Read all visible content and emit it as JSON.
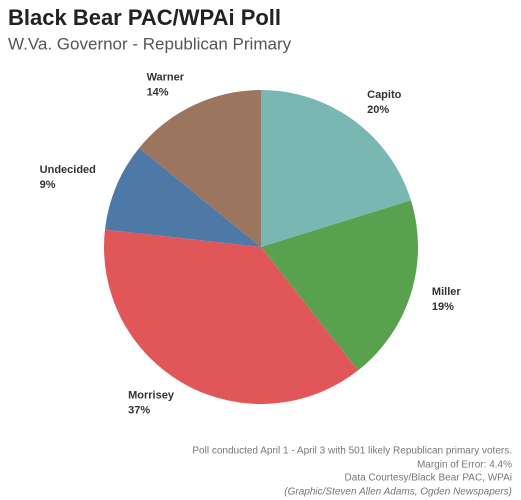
{
  "chart_data": {
    "type": "pie",
    "title": "Black Bear PAC/WPAi Poll",
    "subtitle": "W.Va. Governor - Republican Primary",
    "categories": [
      "Capito",
      "Miller",
      "Morrisey",
      "Undecided",
      "Warner"
    ],
    "values": [
      20,
      19,
      37,
      9,
      14
    ],
    "value_labels": [
      "20%",
      "19%",
      "37%",
      "9%",
      "14%"
    ],
    "colors": [
      "#79b7b2",
      "#59a14f",
      "#e15759",
      "#4e79a7",
      "#9c755f"
    ],
    "notes": [
      "Poll conducted April 1 - April 3 with  501 likely Republican primary voters.",
      "Margin of Error: 4.4%",
      "Data Courtesy/Black Bear PAC, WPAi",
      "(Graphic/Steven Allen Adams, Ogden Newspapers)"
    ]
  }
}
